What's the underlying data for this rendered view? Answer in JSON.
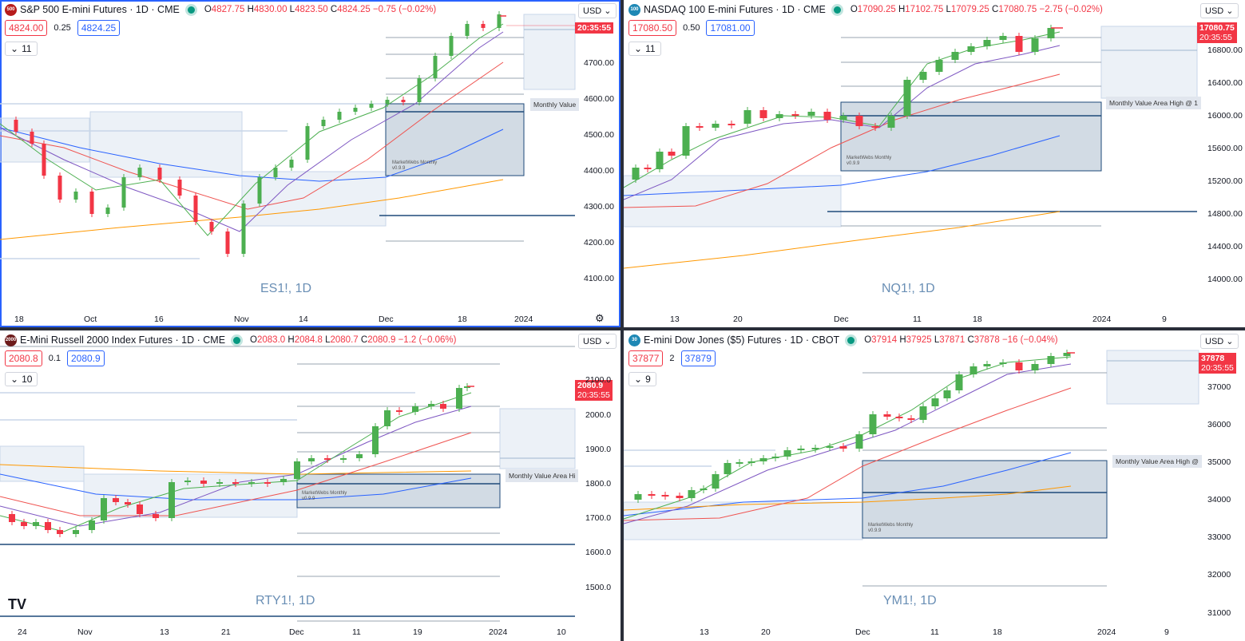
{
  "panes": [
    {
      "id": "es",
      "logo_text": "500",
      "logo_color": "#b71c1c",
      "title": "S&P 500 E-mini Futures · 1D · CME",
      "ohlc": {
        "o": "4827.75",
        "h": "4830.00",
        "l": "4823.50",
        "c": "4824.25",
        "chg": "−0.75 (−0.02%)"
      },
      "bid": "4824.00",
      "spread": "0.25",
      "ask": "4824.25",
      "indicators": "11",
      "currency": "USD",
      "watermark": "ES1!, 1D",
      "price_label": "20:35:55",
      "value_label": "Monthly Value",
      "mw_label": [
        "MarketWebs Monthly",
        "v0.9.9"
      ],
      "yticks": [
        "4700.00",
        "4600.00",
        "4500.00",
        "4400.00",
        "4300.00",
        "4200.00",
        "4100.00"
      ],
      "xticks": [
        "18",
        "Oct",
        "16",
        "Nov",
        "14",
        "Dec",
        "18",
        "2024"
      ]
    },
    {
      "id": "nq",
      "logo_text": "100",
      "logo_color": "#1e88b5",
      "title": "NASDAQ 100 E-mini Futures · 1D · CME",
      "ohlc": {
        "o": "17090.25",
        "h": "17102.75",
        "l": "17079.25",
        "c": "17080.75",
        "chg": "−2.75 (−0.02%)"
      },
      "bid": "17080.50",
      "spread": "0.50",
      "ask": "17081.00",
      "indicators": "11",
      "currency": "USD",
      "watermark": "NQ1!, 1D",
      "price_label": "17080.75",
      "price_time": "20:35:55",
      "value_label": "Monthly Value Area High @ 1",
      "mw_label": [
        "MarketWebs Monthly",
        "v0.9.9"
      ],
      "yticks": [
        "16800.00",
        "16400.00",
        "16000.00",
        "15600.00",
        "15200.00",
        "14800.00",
        "14400.00",
        "14000.00"
      ],
      "xticks": [
        "13",
        "20",
        "Dec",
        "11",
        "18",
        "2024",
        "9"
      ]
    },
    {
      "id": "rty",
      "logo_text": "2000",
      "logo_color": "#6d1b1b",
      "title": "E-Mini Russell 2000 Index Futures · 1D · CME",
      "ohlc": {
        "o": "2083.0",
        "h": "2084.8",
        "l": "2080.7",
        "c": "2080.9",
        "chg": "−1.2 (−0.06%)"
      },
      "bid": "2080.8",
      "spread": "0.1",
      "ask": "2080.9",
      "indicators": "10",
      "currency": "USD",
      "watermark": "RTY1!, 1D",
      "price_label": "2080.9",
      "price_time": "20:35:55",
      "value_label": "Monthly Value Area Hi",
      "mw_label": [
        "MarketWebs Monthly",
        "v0.9.9"
      ],
      "yticks": [
        "2100.0",
        "2000.0",
        "1900.0",
        "1800.0",
        "1700.0",
        "1600.0",
        "1500.0"
      ],
      "xticks": [
        "24",
        "Nov",
        "13",
        "21",
        "Dec",
        "11",
        "19",
        "2024",
        "10"
      ],
      "tv_logo": "TV"
    },
    {
      "id": "ym",
      "logo_text": "30",
      "logo_color": "#1e88b5",
      "title": "E-mini Dow Jones ($5) Futures · 1D · CBOT",
      "ohlc": {
        "o": "37914",
        "h": "37925",
        "l": "37871",
        "c": "37878",
        "chg": "−16 (−0.04%)"
      },
      "bid": "37877",
      "spread": "2",
      "ask": "37879",
      "indicators": "9",
      "currency": "USD",
      "watermark": "YM1!, 1D",
      "price_label": "37878",
      "price_time": "20:35:55",
      "value_label": "Monthly Value Area High @",
      "mw_label": [
        "MarketWebs Monthly",
        "v0.9.9"
      ],
      "yticks": [
        "37000",
        "36000",
        "35000",
        "34000",
        "33000",
        "32000",
        "31000"
      ],
      "xticks": [
        "13",
        "20",
        "Dec",
        "11",
        "18",
        "2024",
        "9"
      ]
    }
  ],
  "colors": {
    "up": "#4caf50",
    "down": "#f23645",
    "ema_fast": "#4caf50",
    "ema_mid": "#7e57c2",
    "ema_slow": "#ef5350",
    "sma_long": "#2962ff",
    "sma_200": "#ff9800",
    "box": "#1e4a7a"
  }
}
